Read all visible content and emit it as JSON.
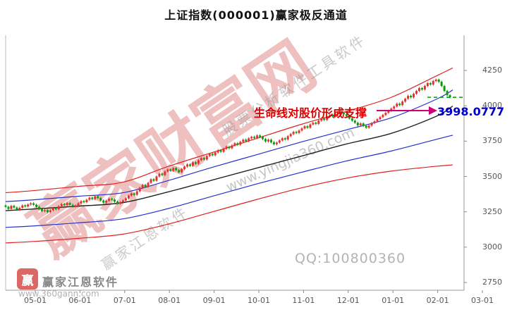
{
  "title": "上证指数(000001)赢家极反通道",
  "annotation": {
    "support_text": "生命线对股价形成支撑",
    "price_label": "3998.0777",
    "text_color": "#dd0000",
    "label_color": "#0000cc",
    "arrow_color": "#cc0077"
  },
  "watermarks": {
    "brand_large": "赢家财富网",
    "diag_tool": "股票分析软件工具软件",
    "diag_site": "www.yingjia360.com",
    "diag_brand": "赢家江恩软件",
    "qq": "QQ:100800360",
    "logo_glyph": "赢",
    "logo_text": "赢家江恩软件",
    "logo_site": "www.360gann.com"
  },
  "chart_data": {
    "type": "candlestick",
    "title": "上证指数(000001)赢家极反通道",
    "symbol": "上证指数",
    "code": "000001",
    "grid": false,
    "ylim": [
      2750,
      4250
    ],
    "y_tick_labels": [
      "4250",
      "4000",
      "3750",
      "3500",
      "3250",
      "3000",
      "2750"
    ],
    "x_tick_labels": [
      "05-01",
      "06-01",
      "07-01",
      "08-01",
      "09-01",
      "10-01",
      "11-01",
      "12-01",
      "01-01",
      "02-01",
      "03-01"
    ],
    "first_open": 3295,
    "wick": 8,
    "colors": {
      "up": "#e03232",
      "down": "#0a9b0a"
    },
    "closes": [
      3285,
      3270,
      3292,
      3280,
      3265,
      3278,
      3295,
      3288,
      3302,
      3310,
      3300,
      3285,
      3270,
      3255,
      3262,
      3248,
      3260,
      3275,
      3268,
      3290,
      3305,
      3298,
      3312,
      3300,
      3288,
      3295,
      3310,
      3325,
      3318,
      3335,
      3350,
      3340,
      3360,
      3348,
      3330,
      3315,
      3328,
      3342,
      3336,
      3322,
      3308,
      3318,
      3330,
      3345,
      3365,
      3380,
      3370,
      3395,
      3420,
      3440,
      3428,
      3455,
      3480,
      3470,
      3500,
      3520,
      3510,
      3535,
      3550,
      3540,
      3560,
      3545,
      3530,
      3552,
      3570,
      3585,
      3575,
      3600,
      3590,
      3615,
      3630,
      3620,
      3645,
      3660,
      3650,
      3670,
      3685,
      3675,
      3695,
      3710,
      3700,
      3720,
      3735,
      3725,
      3745,
      3760,
      3750,
      3770,
      3780,
      3772,
      3790,
      3780,
      3765,
      3748,
      3760,
      3742,
      3728,
      3740,
      3755,
      3770,
      3762,
      3785,
      3800,
      3815,
      3808,
      3825,
      3840,
      3855,
      3845,
      3868,
      3880,
      3872,
      3895,
      3910,
      3900,
      3922,
      3935,
      3925,
      3945,
      3958,
      3950,
      3940,
      3928,
      3910,
      3895,
      3880,
      3862,
      3875,
      3858,
      3845,
      3860,
      3878,
      3890,
      3905,
      3920,
      3935,
      3950,
      3965,
      3980,
      3995,
      4015,
      4005,
      4030,
      4050,
      4070,
      4060,
      4085,
      4105,
      4125,
      4115,
      4140,
      4160,
      4150,
      4175,
      4185,
      4170,
      4140,
      4105,
      4075,
      4060
    ],
    "channel_lines": [
      {
        "name": "outer-upper-red",
        "color": "#e02020",
        "width": 1.2,
        "points": [
          [
            0,
            3385
          ],
          [
            10,
            3400
          ],
          [
            26,
            3430
          ],
          [
            42,
            3460
          ],
          [
            58,
            3570
          ],
          [
            74,
            3670
          ],
          [
            90,
            3770
          ],
          [
            106,
            3870
          ],
          [
            122,
            3960
          ],
          [
            138,
            4060
          ],
          [
            154,
            4210
          ],
          [
            160,
            4268
          ]
        ]
      },
      {
        "name": "inner-upper-blue",
        "color": "#2233cc",
        "width": 1.2,
        "points": [
          [
            0,
            3322
          ],
          [
            10,
            3335
          ],
          [
            26,
            3360
          ],
          [
            42,
            3385
          ],
          [
            58,
            3470
          ],
          [
            74,
            3565
          ],
          [
            90,
            3655
          ],
          [
            106,
            3745
          ],
          [
            122,
            3830
          ],
          [
            138,
            3915
          ],
          [
            154,
            4045
          ],
          [
            160,
            4112
          ]
        ]
      },
      {
        "name": "life-line-black",
        "color": "#222222",
        "width": 1.4,
        "points": [
          [
            0,
            3258
          ],
          [
            10,
            3270
          ],
          [
            26,
            3290
          ],
          [
            42,
            3315
          ],
          [
            58,
            3390
          ],
          [
            74,
            3475
          ],
          [
            90,
            3560
          ],
          [
            106,
            3645
          ],
          [
            122,
            3730
          ],
          [
            138,
            3805
          ],
          [
            154,
            3925
          ],
          [
            160,
            3998
          ]
        ]
      },
      {
        "name": "inner-lower-blue",
        "color": "#2233cc",
        "width": 1.2,
        "points": [
          [
            0,
            3140
          ],
          [
            10,
            3150
          ],
          [
            26,
            3172
          ],
          [
            42,
            3200
          ],
          [
            58,
            3272
          ],
          [
            74,
            3360
          ],
          [
            90,
            3448
          ],
          [
            106,
            3530
          ],
          [
            122,
            3610
          ],
          [
            138,
            3680
          ],
          [
            154,
            3762
          ],
          [
            160,
            3792
          ]
        ]
      },
      {
        "name": "outer-lower-red",
        "color": "#e02020",
        "width": 1.2,
        "points": [
          [
            0,
            3030
          ],
          [
            10,
            3040
          ],
          [
            26,
            3062
          ],
          [
            42,
            3092
          ],
          [
            58,
            3162
          ],
          [
            74,
            3250
          ],
          [
            90,
            3338
          ],
          [
            106,
            3420
          ],
          [
            122,
            3488
          ],
          [
            138,
            3538
          ],
          [
            154,
            3572
          ],
          [
            160,
            3582
          ]
        ]
      }
    ],
    "support_dash": {
      "value": 4060,
      "color": "#00a000"
    },
    "life_line_latest": 3998.0777
  }
}
